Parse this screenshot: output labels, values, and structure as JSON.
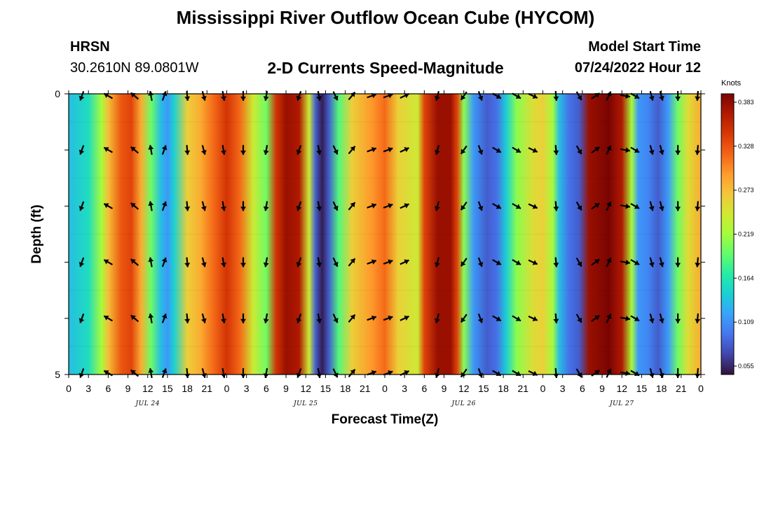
{
  "page": {
    "title_top": "Mississippi River Outflow Ocean Cube (HYCOM)",
    "title_bottom": "Mississippi River Outflow Ocean Cube (HYCOM)",
    "station_id": "HRSN",
    "station_coords": "30.2610N  89.0801W",
    "subtitle": "2-D Currents Speed-Magnitude",
    "model_start_label": "Model Start Time",
    "model_start_value": "07/24/2022 Hour 12"
  },
  "chart_data": {
    "type": "heatmap",
    "title": "2-D Currents Speed-Magnitude",
    "xlabel": "Forecast Time(Z)",
    "ylabel": "Depth (ft)",
    "x_tick_labels": [
      "0",
      "3",
      "6",
      "9",
      "12",
      "15",
      "18",
      "21",
      "0",
      "3",
      "6",
      "9",
      "12",
      "15",
      "18",
      "21",
      "0",
      "3",
      "6",
      "9",
      "12",
      "15",
      "18",
      "21",
      "0",
      "3",
      "6",
      "9",
      "12",
      "15",
      "18",
      "21",
      "0"
    ],
    "date_labels": [
      {
        "label": "JUL 24",
        "hours": 12
      },
      {
        "label": "JUL 25",
        "hours": 36
      },
      {
        "label": "JUL 26",
        "hours": 60
      },
      {
        "label": "JUL 27",
        "hours": 84
      }
    ],
    "x_range_hours": [
      0,
      96
    ],
    "y_tick_labels": [
      "0",
      "",
      "",
      "",
      "",
      "5"
    ],
    "y_range_ft": [
      0,
      5
    ],
    "colorbar": {
      "unit": "Knots",
      "ticks": [
        0.383,
        0.328,
        0.273,
        0.219,
        0.164,
        0.109,
        0.055
      ],
      "range": [
        0.055,
        0.383
      ],
      "colors": [
        "#30123b",
        "#4145ab",
        "#4675ed",
        "#39a2fc",
        "#1bcfd4",
        "#24eca6",
        "#61fc6c",
        "#a4fc3b",
        "#d1e834",
        "#f3c63a",
        "#fe9b2d",
        "#f36315",
        "#d93806",
        "#b11901",
        "#7a0402"
      ]
    },
    "speed_keypoints": [
      [
        0,
        0.14
      ],
      [
        3,
        0.16
      ],
      [
        5,
        0.22
      ],
      [
        6,
        0.27
      ],
      [
        8,
        0.32
      ],
      [
        9.5,
        0.33
      ],
      [
        11,
        0.28
      ],
      [
        12.5,
        0.2
      ],
      [
        14,
        0.14
      ],
      [
        15,
        0.12
      ],
      [
        16,
        0.15
      ],
      [
        18,
        0.26
      ],
      [
        20,
        0.28
      ],
      [
        22,
        0.31
      ],
      [
        24,
        0.34
      ],
      [
        26,
        0.31
      ],
      [
        28,
        0.24
      ],
      [
        30,
        0.2
      ],
      [
        31.5,
        0.34
      ],
      [
        33,
        0.37
      ],
      [
        35,
        0.36
      ],
      [
        36.5,
        0.24
      ],
      [
        37.5,
        0.09
      ],
      [
        38.5,
        0.06
      ],
      [
        39.5,
        0.09
      ],
      [
        41,
        0.19
      ],
      [
        43,
        0.26
      ],
      [
        46,
        0.29
      ],
      [
        48,
        0.31
      ],
      [
        50,
        0.26
      ],
      [
        53,
        0.24
      ],
      [
        54,
        0.33
      ],
      [
        56,
        0.37
      ],
      [
        58,
        0.37
      ],
      [
        59,
        0.33
      ],
      [
        60,
        0.21
      ],
      [
        61.5,
        0.12
      ],
      [
        63.5,
        0.09
      ],
      [
        65,
        0.1
      ],
      [
        66.5,
        0.15
      ],
      [
        68,
        0.21
      ],
      [
        70.5,
        0.25
      ],
      [
        72,
        0.26
      ],
      [
        73.5,
        0.22
      ],
      [
        74.5,
        0.14
      ],
      [
        76,
        0.1
      ],
      [
        77.5,
        0.09
      ],
      [
        79,
        0.37
      ],
      [
        82,
        0.39
      ],
      [
        84,
        0.36
      ],
      [
        85.5,
        0.22
      ],
      [
        86.5,
        0.12
      ],
      [
        88,
        0.11
      ],
      [
        89.5,
        0.09
      ],
      [
        91,
        0.12
      ],
      [
        92.5,
        0.2
      ],
      [
        94,
        0.25
      ],
      [
        96,
        0.28
      ]
    ],
    "vector_depths_ft": [
      0,
      1,
      2,
      3,
      4,
      5
    ],
    "vector_times_hours": [
      2,
      6,
      10,
      12.5,
      14.5,
      18,
      20.5,
      23.5,
      26.5,
      30,
      35,
      38,
      40.5,
      43,
      46,
      48.5,
      51,
      56,
      60,
      62.5,
      65,
      68,
      70.5,
      74,
      77.5,
      80,
      82,
      84.5,
      86,
      88.5,
      90,
      92.5,
      95.5
    ],
    "vector_directions_deg": [
      200,
      300,
      310,
      350,
      20,
      175,
      165,
      170,
      180,
      190,
      200,
      170,
      155,
      40,
      70,
      70,
      65,
      195,
      215,
      160,
      120,
      120,
      115,
      175,
      150,
      55,
      25,
      100,
      120,
      165,
      165,
      180,
      185
    ]
  }
}
